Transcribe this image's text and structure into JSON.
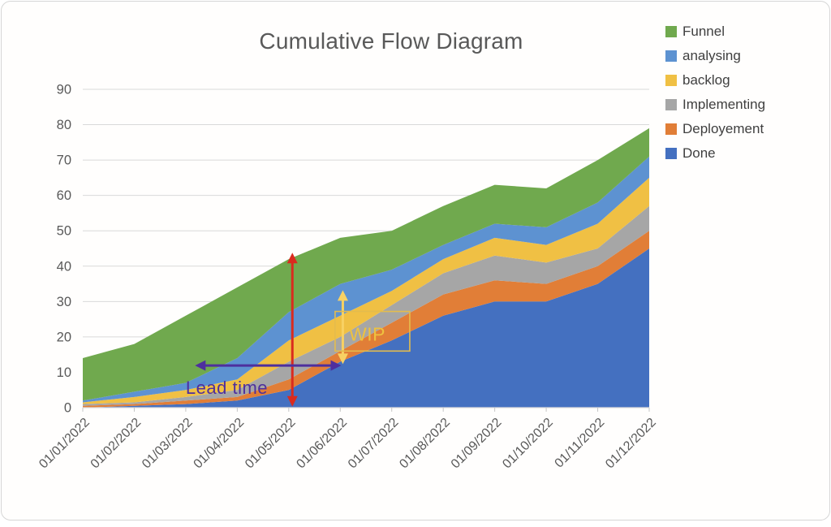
{
  "title": "Cumulative Flow Diagram",
  "chart_data": {
    "type": "area",
    "stacked": true,
    "title": "Cumulative Flow Diagram",
    "categories": [
      "01/01/2022",
      "01/02/2022",
      "01/03/2022",
      "01/04/2022",
      "01/05/2022",
      "01/06/2022",
      "01/07/2022",
      "01/08/2022",
      "01/09/2022",
      "01/10/2022",
      "01/11/2022",
      "01/12/2022"
    ],
    "series": [
      {
        "name": "Done",
        "color": "#4470C0",
        "values": [
          0,
          0.5,
          1,
          2,
          5,
          13,
          19,
          26,
          30,
          30,
          35,
          45
        ]
      },
      {
        "name": "Deployement",
        "color": "#E17E37",
        "values": [
          0.5,
          0.5,
          1,
          1,
          3,
          3,
          5,
          6,
          6,
          5,
          5,
          5
        ]
      },
      {
        "name": "Implementing",
        "color": "#A6A6A6",
        "values": [
          0.5,
          0.5,
          1,
          2,
          5,
          4,
          5,
          6,
          7,
          6,
          5,
          7
        ]
      },
      {
        "name": "backlog",
        "color": "#F0C044",
        "values": [
          0.5,
          1.5,
          2,
          3,
          6,
          6,
          4,
          4,
          5,
          5,
          7,
          8
        ]
      },
      {
        "name": "analysing",
        "color": "#5D92D1",
        "values": [
          0.5,
          1.5,
          2,
          6,
          8,
          9,
          6,
          4,
          4,
          5,
          6,
          6
        ]
      },
      {
        "name": "Funnel",
        "color": "#70A94E",
        "values": [
          12,
          13.5,
          19,
          20,
          15,
          13,
          11,
          11,
          11,
          11,
          12,
          8
        ]
      }
    ],
    "legend_order": [
      "Funnel",
      "analysing",
      "backlog",
      "Implementing",
      "Deployement",
      "Done"
    ],
    "legend_position": "top-right",
    "xlabel": "",
    "ylabel": "",
    "ylim": [
      0,
      90
    ],
    "ytick_step": 10,
    "grid": true,
    "grid_color": "#d9d9d9",
    "axis_text_color": "#595959",
    "annotations": [
      {
        "id": "total-span-arrow",
        "type": "v-arrow",
        "color": "#DA2B1E",
        "x": 4.07,
        "y1": 43.8,
        "y2": 0.3
      },
      {
        "id": "lead-time-arrow",
        "type": "h-arrow",
        "color": "#4E2F9E",
        "y": 11.9,
        "x1": 2.18,
        "x2": 5.02
      },
      {
        "id": "lead-time-label",
        "type": "label",
        "text": "Lead time",
        "color": "#4E2F9E",
        "x": 2.0,
        "y": 3.9,
        "size": 22
      },
      {
        "id": "wip-arrow",
        "type": "v-arrow",
        "color": "#F8D163",
        "x": 5.05,
        "y1": 33.2,
        "y2": 12.3
      },
      {
        "id": "wip-box",
        "type": "box",
        "color": "#E4BC4D",
        "x1": 4.9,
        "x2": 6.35,
        "y1": 27.2,
        "y2": 16.0
      },
      {
        "id": "wip-label",
        "type": "label",
        "text": "WIP",
        "color": "#EEC23F",
        "x": 5.17,
        "y": 18.9,
        "size": 23
      }
    ]
  }
}
